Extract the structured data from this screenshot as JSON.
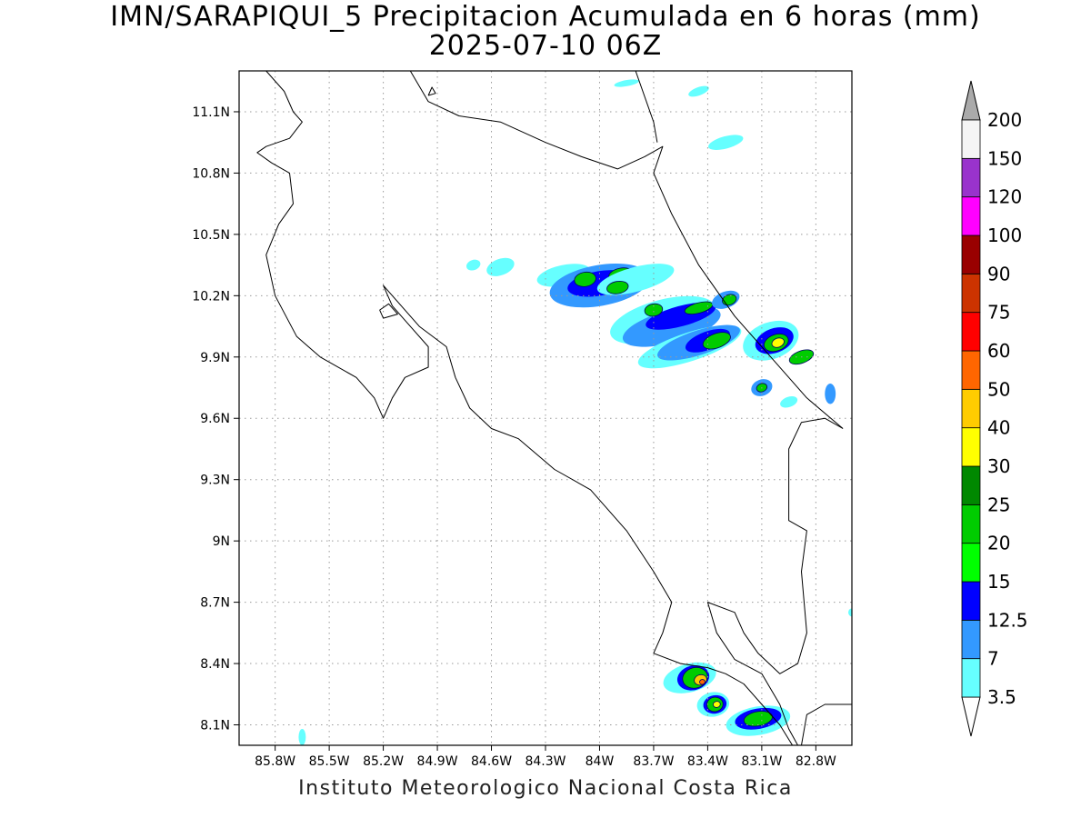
{
  "title": "IMN/SARAPIQUI_5 Precipitacion Acumulada en 6 horas (mm)",
  "subtitle": "2025-07-10 06Z",
  "footer": "Instituto Meteorologico Nacional Costa Rica",
  "chart_data": {
    "type": "heatmap",
    "xlim": [
      -86.0,
      -82.6
    ],
    "ylim": [
      8.0,
      11.3
    ],
    "x_ticks": [
      -85.8,
      -85.5,
      -85.2,
      -84.9,
      -84.6,
      -84.3,
      -84.0,
      -83.7,
      -83.4,
      -83.1,
      -82.8
    ],
    "x_tick_labels": [
      "85.8W",
      "85.5W",
      "85.2W",
      "84.9W",
      "84.6W",
      "84.3W",
      "84W",
      "83.7W",
      "83.4W",
      "83.1W",
      "82.8W"
    ],
    "y_ticks": [
      8.1,
      8.4,
      8.7,
      9.0,
      9.3,
      9.6,
      9.9,
      10.2,
      10.5,
      10.8,
      11.1
    ],
    "y_tick_labels": [
      "8.1N",
      "8.4N",
      "8.7N",
      "9N",
      "9.3N",
      "9.6N",
      "9.9N",
      "10.2N",
      "10.5N",
      "10.8N",
      "11.1N"
    ],
    "grid": true,
    "colorbar": {
      "labels": [
        "3.5",
        "7",
        "12.5",
        "15",
        "20",
        "25",
        "30",
        "40",
        "50",
        "60",
        "75",
        "90",
        "100",
        "120",
        "150",
        "200"
      ],
      "colors": [
        "#66ffff",
        "#3399ff",
        "#0000ff",
        "#00ff00",
        "#00cc00",
        "#008800",
        "#ffff00",
        "#ffcc00",
        "#ff6600",
        "#ff0000",
        "#cc3300",
        "#990000",
        "#ff00ff",
        "#9933cc",
        "#f5f5f5"
      ],
      "under_color": "#ffffff",
      "over_color": "#aaaaaa"
    },
    "rain_cells": [
      {
        "lon": -84.2,
        "lat": 10.3,
        "rx": 0.15,
        "ry": 0.05,
        "angle": -12,
        "level": 0
      },
      {
        "lon": -84.0,
        "lat": 10.25,
        "rx": 0.28,
        "ry": 0.1,
        "angle": -10,
        "level": 1
      },
      {
        "lon": -84.0,
        "lat": 10.26,
        "rx": 0.18,
        "ry": 0.06,
        "angle": -10,
        "level": 2
      },
      {
        "lon": -84.08,
        "lat": 10.28,
        "rx": 0.06,
        "ry": 0.035,
        "angle": -10,
        "level": 4
      },
      {
        "lon": -83.88,
        "lat": 10.3,
        "rx": 0.07,
        "ry": 0.035,
        "angle": -10,
        "level": 4
      },
      {
        "lon": -83.8,
        "lat": 10.28,
        "rx": 0.22,
        "ry": 0.06,
        "angle": -15,
        "level": 0
      },
      {
        "lon": -83.9,
        "lat": 10.24,
        "rx": 0.06,
        "ry": 0.03,
        "angle": -10,
        "level": 4
      },
      {
        "lon": -83.65,
        "lat": 10.08,
        "rx": 0.3,
        "ry": 0.1,
        "angle": -15,
        "level": 0
      },
      {
        "lon": -83.6,
        "lat": 10.05,
        "rx": 0.28,
        "ry": 0.08,
        "angle": -15,
        "level": 1
      },
      {
        "lon": -83.55,
        "lat": 10.1,
        "rx": 0.2,
        "ry": 0.05,
        "angle": -15,
        "level": 2
      },
      {
        "lon": -83.7,
        "lat": 10.13,
        "rx": 0.05,
        "ry": 0.03,
        "angle": -10,
        "level": 4
      },
      {
        "lon": -83.45,
        "lat": 10.14,
        "rx": 0.08,
        "ry": 0.025,
        "angle": -15,
        "level": 4
      },
      {
        "lon": -83.5,
        "lat": 9.95,
        "rx": 0.3,
        "ry": 0.07,
        "angle": -18,
        "level": 0
      },
      {
        "lon": -83.45,
        "lat": 9.97,
        "rx": 0.24,
        "ry": 0.06,
        "angle": -18,
        "level": 1
      },
      {
        "lon": -83.4,
        "lat": 9.98,
        "rx": 0.13,
        "ry": 0.045,
        "angle": -20,
        "level": 2
      },
      {
        "lon": -83.35,
        "lat": 9.98,
        "rx": 0.08,
        "ry": 0.035,
        "angle": -20,
        "level": 4
      },
      {
        "lon": -83.3,
        "lat": 10.18,
        "rx": 0.08,
        "ry": 0.04,
        "angle": -20,
        "level": 1
      },
      {
        "lon": -83.28,
        "lat": 10.18,
        "rx": 0.04,
        "ry": 0.025,
        "angle": -20,
        "level": 4
      },
      {
        "lon": -83.05,
        "lat": 9.98,
        "rx": 0.16,
        "ry": 0.09,
        "angle": -20,
        "level": 0
      },
      {
        "lon": -83.03,
        "lat": 9.98,
        "rx": 0.11,
        "ry": 0.06,
        "angle": -20,
        "level": 2
      },
      {
        "lon": -83.02,
        "lat": 9.97,
        "rx": 0.07,
        "ry": 0.04,
        "angle": -20,
        "level": 4
      },
      {
        "lon": -83.01,
        "lat": 9.97,
        "rx": 0.035,
        "ry": 0.022,
        "angle": -20,
        "level": 6
      },
      {
        "lon": -82.88,
        "lat": 9.9,
        "rx": 0.07,
        "ry": 0.03,
        "angle": -20,
        "level": 4
      },
      {
        "lon": -83.1,
        "lat": 9.75,
        "rx": 0.06,
        "ry": 0.04,
        "angle": -20,
        "level": 1
      },
      {
        "lon": -83.1,
        "lat": 9.75,
        "rx": 0.03,
        "ry": 0.02,
        "angle": -20,
        "level": 4
      },
      {
        "lon": -82.95,
        "lat": 9.68,
        "rx": 0.05,
        "ry": 0.025,
        "angle": -20,
        "level": 0
      },
      {
        "lon": -82.72,
        "lat": 9.72,
        "rx": 0.03,
        "ry": 0.05,
        "angle": 0,
        "level": 1
      },
      {
        "lon": -84.55,
        "lat": 10.34,
        "rx": 0.08,
        "ry": 0.04,
        "angle": -20,
        "level": 0
      },
      {
        "lon": -84.7,
        "lat": 10.35,
        "rx": 0.04,
        "ry": 0.025,
        "angle": -20,
        "level": 0
      },
      {
        "lon": -83.45,
        "lat": 11.2,
        "rx": 0.06,
        "ry": 0.02,
        "angle": -20,
        "level": 0
      },
      {
        "lon": -83.85,
        "lat": 11.24,
        "rx": 0.07,
        "ry": 0.015,
        "angle": -10,
        "level": 0
      },
      {
        "lon": -83.3,
        "lat": 10.95,
        "rx": 0.1,
        "ry": 0.03,
        "angle": -15,
        "level": 0
      },
      {
        "lon": -83.5,
        "lat": 8.33,
        "rx": 0.15,
        "ry": 0.07,
        "angle": -15,
        "level": 0
      },
      {
        "lon": -83.48,
        "lat": 8.33,
        "rx": 0.09,
        "ry": 0.06,
        "angle": -15,
        "level": 2
      },
      {
        "lon": -83.47,
        "lat": 8.33,
        "rx": 0.07,
        "ry": 0.05,
        "angle": -15,
        "level": 4
      },
      {
        "lon": -83.44,
        "lat": 8.32,
        "rx": 0.035,
        "ry": 0.025,
        "angle": -15,
        "level": 7
      },
      {
        "lon": -83.43,
        "lat": 8.31,
        "rx": 0.015,
        "ry": 0.012,
        "angle": -15,
        "level": 8
      },
      {
        "lon": -83.37,
        "lat": 8.2,
        "rx": 0.09,
        "ry": 0.06,
        "angle": -10,
        "level": 0
      },
      {
        "lon": -83.36,
        "lat": 8.2,
        "rx": 0.065,
        "ry": 0.045,
        "angle": -10,
        "level": 2
      },
      {
        "lon": -83.36,
        "lat": 8.2,
        "rx": 0.045,
        "ry": 0.035,
        "angle": -10,
        "level": 4
      },
      {
        "lon": -83.35,
        "lat": 8.2,
        "rx": 0.02,
        "ry": 0.015,
        "angle": -10,
        "level": 6
      },
      {
        "lon": -83.12,
        "lat": 8.12,
        "rx": 0.18,
        "ry": 0.07,
        "angle": -10,
        "level": 0
      },
      {
        "lon": -83.12,
        "lat": 8.13,
        "rx": 0.13,
        "ry": 0.05,
        "angle": -10,
        "level": 2
      },
      {
        "lon": -83.12,
        "lat": 8.13,
        "rx": 0.08,
        "ry": 0.035,
        "angle": -10,
        "level": 4
      },
      {
        "lon": -82.6,
        "lat": 8.65,
        "rx": 0.02,
        "ry": 0.02,
        "angle": 0,
        "level": 0
      },
      {
        "lon": -85.65,
        "lat": 8.04,
        "rx": 0.02,
        "ry": 0.04,
        "angle": 0,
        "level": 0
      }
    ],
    "coastline": [
      [
        [
          -85.85,
          11.3
        ],
        [
          -85.75,
          11.2
        ],
        [
          -85.7,
          11.1
        ],
        [
          -85.65,
          11.05
        ],
        [
          -85.72,
          10.97
        ],
        [
          -85.85,
          10.93
        ],
        [
          -85.9,
          10.9
        ],
        [
          -85.82,
          10.85
        ],
        [
          -85.72,
          10.8
        ],
        [
          -85.7,
          10.65
        ],
        [
          -85.78,
          10.55
        ],
        [
          -85.85,
          10.4
        ],
        [
          -85.8,
          10.2
        ],
        [
          -85.68,
          10.0
        ],
        [
          -85.55,
          9.9
        ],
        [
          -85.35,
          9.8
        ],
        [
          -85.25,
          9.7
        ],
        [
          -85.2,
          9.6
        ],
        [
          -85.15,
          9.7
        ],
        [
          -85.08,
          9.8
        ],
        [
          -84.95,
          9.85
        ],
        [
          -84.95,
          9.95
        ],
        [
          -85.05,
          10.05
        ],
        [
          -85.15,
          10.15
        ],
        [
          -85.2,
          10.25
        ],
        [
          -85.1,
          10.15
        ],
        [
          -85.0,
          10.05
        ],
        [
          -84.85,
          9.95
        ],
        [
          -84.8,
          9.8
        ],
        [
          -84.72,
          9.65
        ],
        [
          -84.6,
          9.55
        ],
        [
          -84.45,
          9.5
        ],
        [
          -84.25,
          9.35
        ],
        [
          -84.05,
          9.25
        ],
        [
          -83.85,
          9.05
        ],
        [
          -83.7,
          8.85
        ],
        [
          -83.6,
          8.7
        ],
        [
          -83.65,
          8.55
        ],
        [
          -83.7,
          8.45
        ],
        [
          -83.55,
          8.4
        ],
        [
          -83.4,
          8.38
        ],
        [
          -83.3,
          8.35
        ],
        [
          -83.2,
          8.3
        ],
        [
          -83.1,
          8.2
        ],
        [
          -83.0,
          8.1
        ],
        [
          -82.93,
          8.0
        ]
      ],
      [
        [
          -85.22,
          10.13
        ],
        [
          -85.17,
          10.16
        ],
        [
          -85.12,
          10.11
        ],
        [
          -85.2,
          10.09
        ],
        [
          -85.22,
          10.13
        ]
      ],
      [
        [
          -85.05,
          11.3
        ],
        [
          -84.95,
          11.15
        ],
        [
          -84.78,
          11.08
        ],
        [
          -84.55,
          11.05
        ],
        [
          -84.3,
          10.95
        ],
        [
          -84.1,
          10.88
        ],
        [
          -83.9,
          10.82
        ],
        [
          -83.75,
          10.88
        ],
        [
          -83.65,
          10.93
        ],
        [
          -83.7,
          10.8
        ],
        [
          -83.6,
          10.6
        ],
        [
          -83.45,
          10.35
        ],
        [
          -83.25,
          10.1
        ],
        [
          -83.05,
          9.9
        ],
        [
          -82.85,
          9.7
        ],
        [
          -82.65,
          9.55
        ]
      ],
      [
        [
          -83.8,
          11.3
        ],
        [
          -83.7,
          11.05
        ],
        [
          -83.68,
          10.95
        ]
      ],
      [
        [
          -82.65,
          9.55
        ],
        [
          -82.75,
          9.6
        ],
        [
          -82.88,
          9.58
        ],
        [
          -82.95,
          9.45
        ],
        [
          -82.95,
          9.1
        ],
        [
          -82.85,
          9.05
        ],
        [
          -82.88,
          8.85
        ],
        [
          -82.85,
          8.55
        ],
        [
          -82.9,
          8.4
        ],
        [
          -83.0,
          8.35
        ],
        [
          -83.12,
          8.45
        ],
        [
          -83.2,
          8.55
        ],
        [
          -83.25,
          8.65
        ],
        [
          -83.4,
          8.7
        ],
        [
          -83.35,
          8.55
        ],
        [
          -83.25,
          8.42
        ],
        [
          -83.1,
          8.35
        ],
        [
          -83.0,
          8.2
        ],
        [
          -82.95,
          8.08
        ],
        [
          -82.9,
          8.0
        ]
      ],
      [
        [
          -82.6,
          8.2
        ],
        [
          -82.75,
          8.2
        ],
        [
          -82.85,
          8.15
        ],
        [
          -82.88,
          8.0
        ]
      ],
      [
        [
          -84.95,
          11.18
        ],
        [
          -84.93,
          11.22
        ],
        [
          -84.91,
          11.19
        ],
        [
          -84.95,
          11.18
        ]
      ]
    ]
  }
}
